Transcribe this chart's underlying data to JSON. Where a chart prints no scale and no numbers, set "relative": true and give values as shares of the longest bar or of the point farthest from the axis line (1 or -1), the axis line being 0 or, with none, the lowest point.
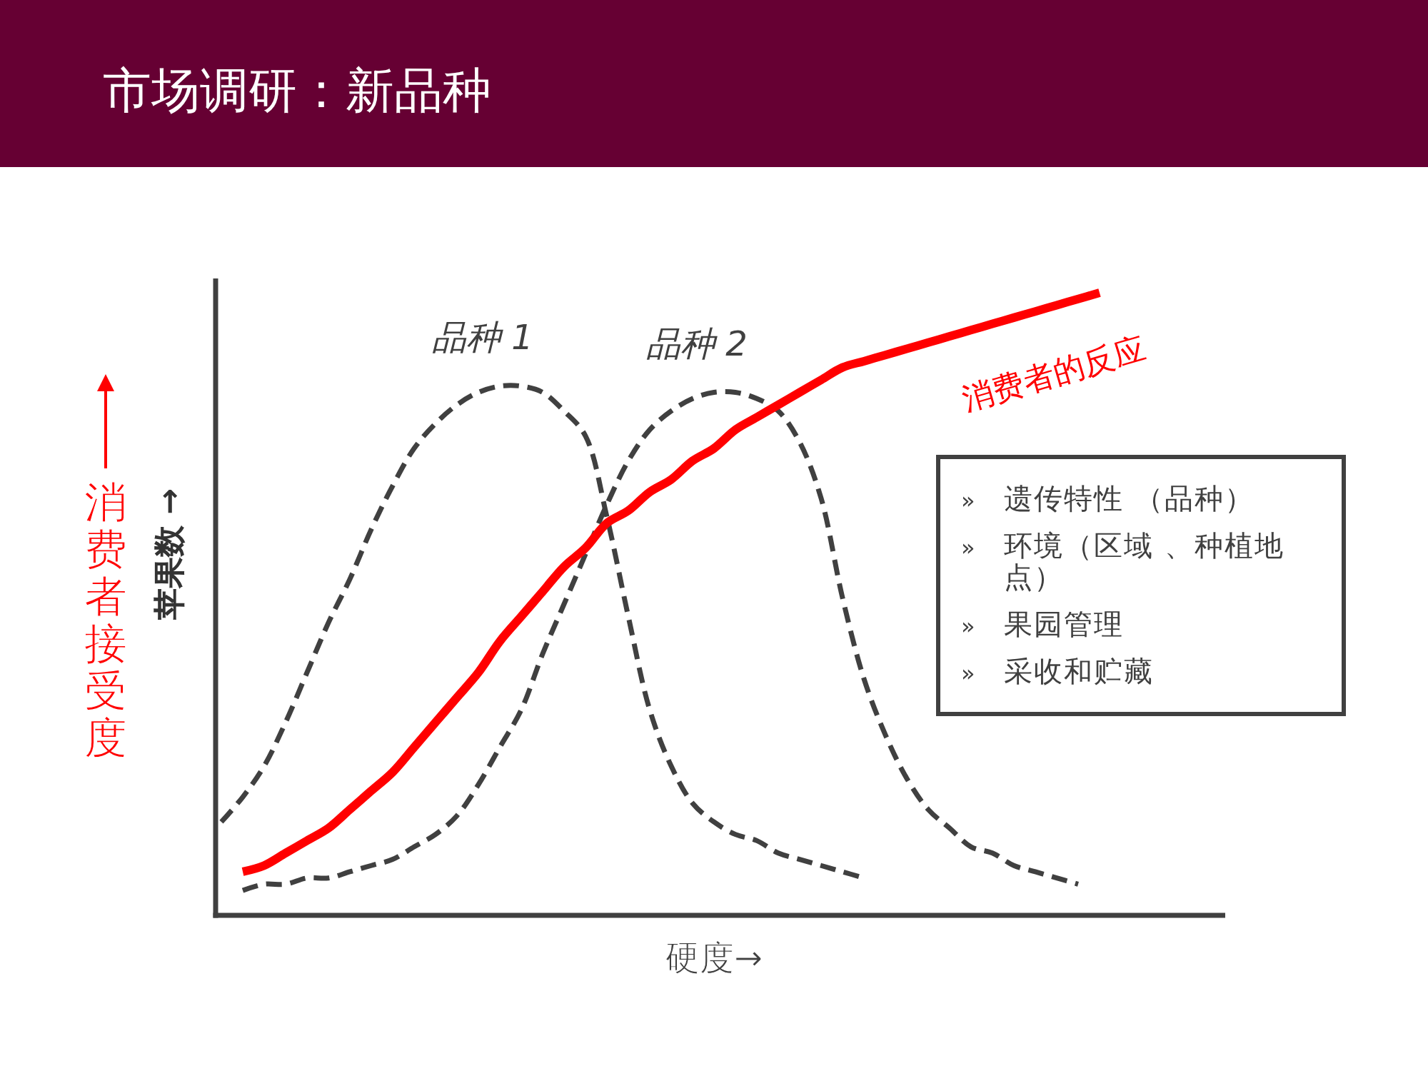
{
  "chart_data": {
    "type": "line",
    "title": "市场调研：新品种",
    "xlabel": "硬度→",
    "ylabel": "苹果数 →",
    "y2label": "消费者接受度",
    "annotations": [
      "» 遗传特性 （品种）",
      "» 环境（区域 、种植地点）",
      "» 果园管理",
      "» 采收和贮藏"
    ],
    "relative": true,
    "categories": [
      null,
      null,
      null,
      null,
      null,
      null,
      null,
      null,
      null,
      null,
      null,
      null,
      null,
      null,
      null,
      null,
      null,
      null,
      null,
      null,
      null,
      null,
      null,
      null,
      null,
      null,
      null,
      null,
      null,
      null,
      null,
      null,
      null,
      null,
      null,
      null,
      null,
      null,
      null,
      null,
      null,
      null,
      null,
      null,
      null,
      null,
      null
    ],
    "series": [
      {
        "name": "品种 1",
        "color": "#404040",
        "line_style": "dashed",
        "values": [
          0.15,
          0.19,
          0.24,
          0.31,
          0.39,
          0.47,
          0.54,
          0.62,
          0.69,
          0.75,
          0.79,
          0.82,
          0.84,
          0.85,
          0.85,
          0.84,
          0.81,
          0.77,
          0.64,
          0.48,
          0.33,
          0.24,
          0.18,
          0.15,
          0.13,
          0.12,
          0.1,
          0.09,
          0.08,
          0.07,
          0.06,
          null,
          null,
          null,
          null,
          null,
          null,
          null,
          null,
          null,
          null,
          null,
          null,
          null,
          null,
          null,
          null
        ]
      },
      {
        "name": "品种 2",
        "color": "#404040",
        "line_style": "dashed",
        "values": [
          null,
          0.04,
          0.05,
          0.05,
          0.06,
          0.06,
          0.07,
          0.08,
          0.09,
          0.11,
          0.13,
          0.16,
          0.21,
          0.27,
          0.33,
          0.42,
          0.5,
          0.58,
          0.66,
          0.73,
          0.78,
          0.81,
          0.83,
          0.84,
          0.84,
          0.83,
          0.81,
          0.76,
          0.67,
          0.51,
          0.38,
          0.29,
          0.22,
          0.17,
          0.14,
          0.11,
          0.1,
          0.08,
          0.07,
          0.06,
          0.05,
          null,
          null,
          null,
          null,
          null,
          null
        ]
      },
      {
        "name": "消费者的反应",
        "color": "#ff0000",
        "line_style": "solid",
        "values": [
          null,
          0.07,
          0.08,
          0.1,
          0.12,
          0.14,
          0.17,
          0.2,
          0.23,
          0.27,
          0.31,
          0.35,
          0.39,
          0.44,
          0.48,
          0.52,
          0.56,
          0.59,
          0.63,
          0.65,
          0.68,
          0.7,
          0.73,
          0.75,
          0.78,
          0.8,
          0.82,
          0.84,
          0.86,
          0.88,
          0.89,
          0.9,
          0.91,
          0.92,
          0.93,
          0.94,
          0.95,
          0.96,
          0.97,
          0.98,
          0.99,
          1.0,
          null,
          null,
          null,
          null,
          null
        ]
      }
    ]
  }
}
